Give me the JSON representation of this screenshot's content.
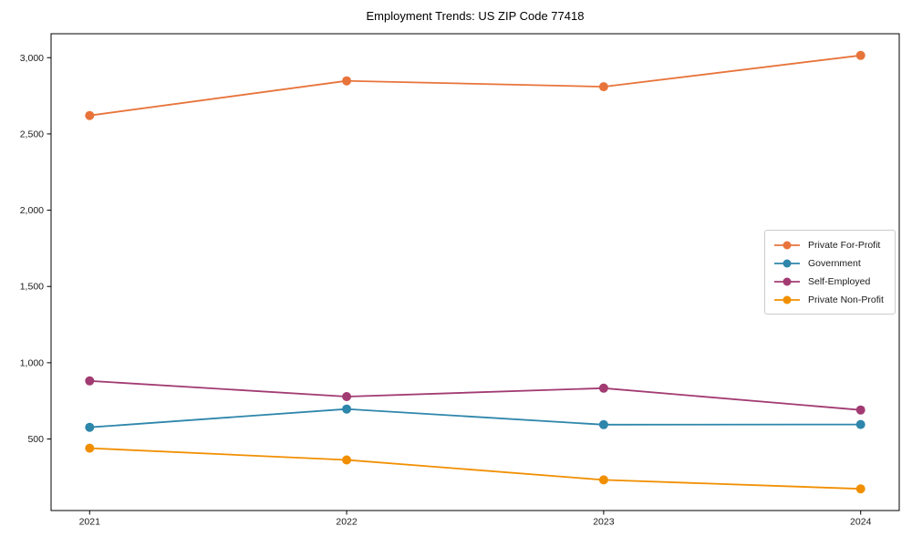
{
  "chart_data": {
    "type": "line",
    "title": "Employment Trends: US ZIP Code 77418",
    "categories": [
      "2021",
      "2022",
      "2023",
      "2024"
    ],
    "series": [
      {
        "name": "Private For-Profit",
        "color": "#E8743B",
        "values": [
          2621,
          2848,
          2810,
          3015
        ]
      },
      {
        "name": "Government",
        "color": "#2E86AB",
        "values": [
          577,
          696,
          594,
          595
        ]
      },
      {
        "name": "Self-Employed",
        "color": "#A23B72",
        "values": [
          881,
          778,
          833,
          690
        ]
      },
      {
        "name": "Private Non-Profit",
        "color": "#F18F01",
        "values": [
          440,
          363,
          232,
          173
        ]
      }
    ],
    "xlabel": "",
    "ylabel": "",
    "ylim": [
      31,
      3157
    ],
    "yticks": [
      500,
      1000,
      1500,
      2000,
      2500,
      3000
    ],
    "ytick_labels": [
      "500",
      "1,000",
      "1,500",
      "2,000",
      "2,500",
      "3,000"
    ],
    "grid": false,
    "legend_position": "center-right",
    "marker": "circle",
    "marker_size": 5,
    "line_width": 1.8,
    "axis_color": "#000000",
    "tick_text_color": "#1a1a1a",
    "background": "#ffffff"
  }
}
